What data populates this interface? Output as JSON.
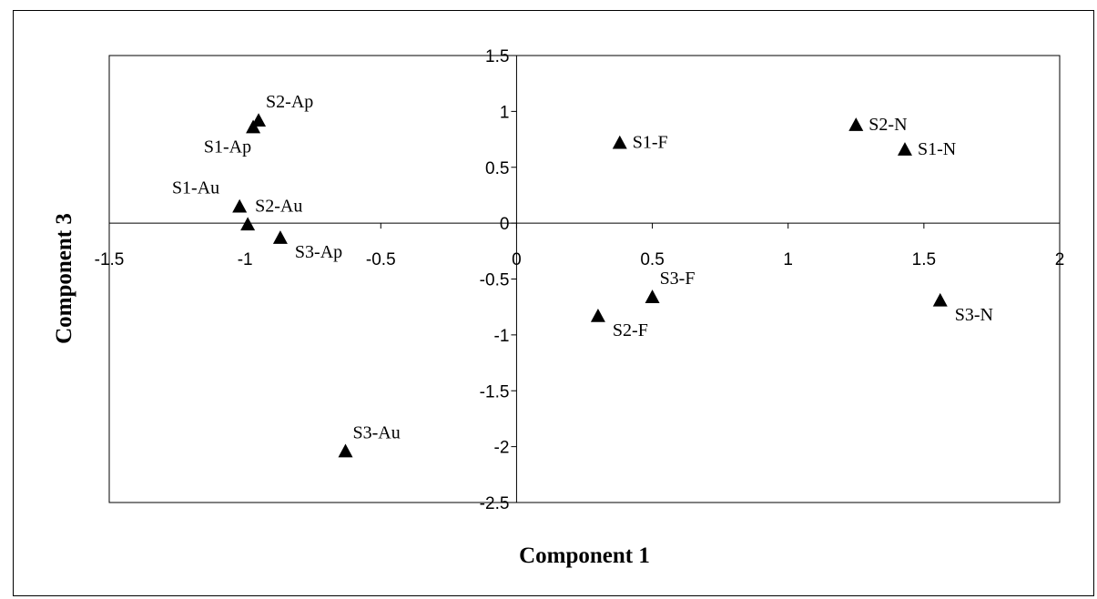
{
  "chart_data": {
    "type": "scatter",
    "xlabel": "Component 1",
    "ylabel": "Component 3",
    "xlim": [
      -1.5,
      2
    ],
    "ylim": [
      -2.5,
      1.5
    ],
    "xticks": [
      -1.5,
      -1,
      -0.5,
      0,
      0.5,
      1,
      1.5,
      2
    ],
    "yticks": [
      1.5,
      1,
      0.5,
      0,
      -0.5,
      -1,
      -1.5,
      -2,
      -2.5
    ],
    "xtick_labels": [
      "-1.5",
      "-1",
      "-0.5",
      "0",
      "0.5",
      "1",
      "1.5",
      "2"
    ],
    "ytick_labels": [
      "1.5",
      "1",
      "0.5",
      "0",
      "-0.5",
      "-1",
      "-1.5",
      "-2",
      "-2.5"
    ],
    "grid": false,
    "marker": "triangle",
    "marker_color": "#000000",
    "points": [
      {
        "label": "S2-Ap",
        "x": -0.95,
        "y": 0.92,
        "label_pos": "above-right"
      },
      {
        "label": "S1-Ap",
        "x": -0.97,
        "y": 0.86,
        "label_pos": "below-left"
      },
      {
        "label": "S1-Au",
        "x": -1.02,
        "y": 0.15,
        "label_pos": "above-left"
      },
      {
        "label": "S2-Au",
        "x": -0.99,
        "y": -0.01,
        "label_pos": "above-right"
      },
      {
        "label": "S3-Ap",
        "x": -0.87,
        "y": -0.13,
        "label_pos": "below-right"
      },
      {
        "label": "S3-Au",
        "x": -0.63,
        "y": -2.04,
        "label_pos": "above-right"
      },
      {
        "label": "S1-F",
        "x": 0.38,
        "y": 0.72,
        "label_pos": "right"
      },
      {
        "label": "S2-N",
        "x": 1.25,
        "y": 0.88,
        "label_pos": "right"
      },
      {
        "label": "S1-N",
        "x": 1.43,
        "y": 0.66,
        "label_pos": "right"
      },
      {
        "label": "S3-F",
        "x": 0.5,
        "y": -0.66,
        "label_pos": "above-right"
      },
      {
        "label": "S2-F",
        "x": 0.3,
        "y": -0.83,
        "label_pos": "below-right"
      },
      {
        "label": "S3-N",
        "x": 1.56,
        "y": -0.69,
        "label_pos": "below-right"
      }
    ]
  }
}
